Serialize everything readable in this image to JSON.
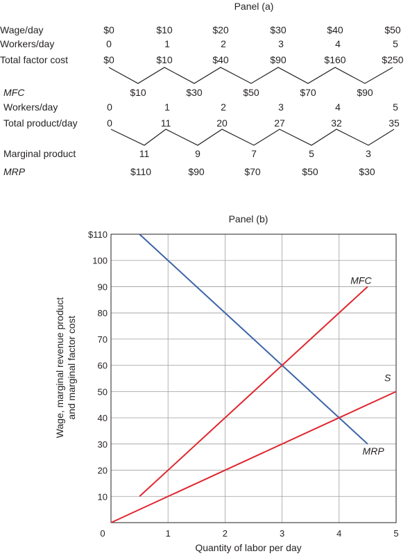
{
  "panel_a": {
    "title": "Panel (a)",
    "rows": [
      {
        "label": "Wage/day",
        "italic": false,
        "values": [
          "$0",
          "$10",
          "$20",
          "$30",
          "$40",
          "$50"
        ]
      },
      {
        "label": "Workers/day",
        "italic": false,
        "values": [
          "0",
          "1",
          "2",
          "3",
          "4",
          "5"
        ]
      },
      {
        "label": "Total factor cost",
        "italic": false,
        "values": [
          "$0",
          "$10",
          "$40",
          "$90",
          "$160",
          "$250"
        ]
      },
      {
        "label": "MFC",
        "italic": true,
        "values": [
          "$10",
          "$30",
          "$50",
          "$70",
          "$90"
        ]
      },
      {
        "label": "Workers/day",
        "italic": false,
        "values": [
          "0",
          "1",
          "2",
          "3",
          "4",
          "5"
        ]
      },
      {
        "label": "Total product/day",
        "italic": false,
        "values": [
          "0",
          "11",
          "20",
          "27",
          "32",
          "35"
        ]
      },
      {
        "label": "Marginal product",
        "italic": false,
        "values": [
          "11",
          "9",
          "7",
          "5",
          "3"
        ]
      },
      {
        "label": "MRP",
        "italic": true,
        "values": [
          "$110",
          "$90",
          "$70",
          "$50",
          "$30"
        ]
      }
    ],
    "zigzag_color": "#231f20"
  },
  "chart_data": {
    "type": "line",
    "title": "Panel (b)",
    "xlabel": "Quantity of labor per day",
    "ylabel": "Wage, marginal revenue product\nand marginal factor cost",
    "xlim": [
      0,
      5
    ],
    "ylim": [
      0,
      110
    ],
    "x_ticks": [
      "0",
      "1",
      "2",
      "3",
      "4",
      "5"
    ],
    "y_ticks": [
      "0",
      "10",
      "20",
      "30",
      "40",
      "50",
      "60",
      "70",
      "80",
      "90",
      "100",
      "$110"
    ],
    "grid": true,
    "series": [
      {
        "name": "MRP",
        "color": "#3c64a8",
        "points": [
          [
            0.5,
            110
          ],
          [
            1.5,
            90
          ],
          [
            2.5,
            70
          ],
          [
            3.5,
            50
          ],
          [
            4.5,
            30
          ]
        ]
      },
      {
        "name": "MFC",
        "color": "#e0262d",
        "points": [
          [
            0.5,
            10
          ],
          [
            1.5,
            30
          ],
          [
            2.5,
            50
          ],
          [
            3.5,
            70
          ],
          [
            4.5,
            90
          ]
        ]
      },
      {
        "name": "S",
        "color": "#e0262d",
        "points": [
          [
            0,
            0
          ],
          [
            1,
            10
          ],
          [
            2,
            20
          ],
          [
            3,
            30
          ],
          [
            4,
            40
          ],
          [
            5,
            50
          ]
        ]
      }
    ]
  }
}
